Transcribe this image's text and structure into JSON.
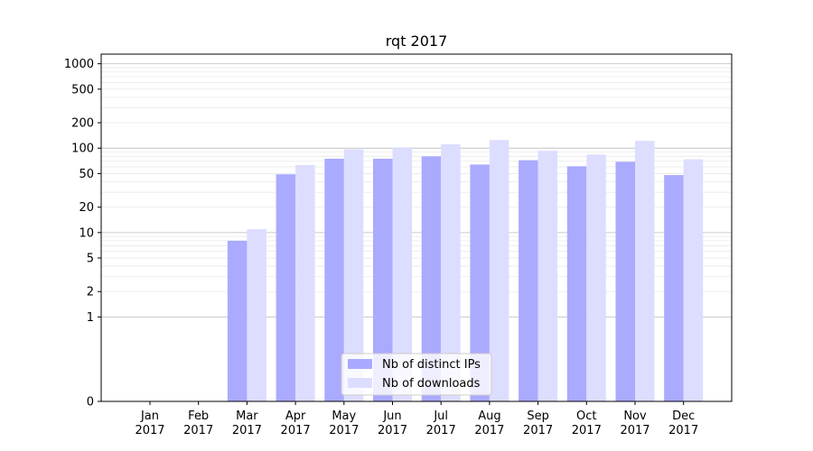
{
  "chart_data": {
    "type": "bar",
    "title": "rqt 2017",
    "xlabel": "",
    "ylabel": "",
    "yscale": "symlog",
    "ylim": [
      0,
      1300
    ],
    "categories": [
      "Jan\n2017",
      "Feb\n2017",
      "Mar\n2017",
      "Apr\n2017",
      "May\n2017",
      "Jun\n2017",
      "Jul\n2017",
      "Aug\n2017",
      "Sep\n2017",
      "Oct\n2017",
      "Nov\n2017",
      "Dec\n2017"
    ],
    "yticks": [
      0,
      1,
      2,
      5,
      10,
      20,
      50,
      100,
      200,
      500,
      1000
    ],
    "ytick_labels": [
      "0",
      "1",
      "2",
      "5",
      "10",
      "20",
      "50",
      "100",
      "200",
      "500",
      "1000"
    ],
    "grid": true,
    "legend_position": "lower-center",
    "series": [
      {
        "name": "Nb of distinct IPs",
        "color": "#aaaaff",
        "values": [
          0,
          0,
          8,
          49,
          75,
          75,
          80,
          64,
          72,
          61,
          69,
          48
        ]
      },
      {
        "name": "Nb of downloads",
        "color": "#ddddff",
        "values": [
          0,
          0,
          11,
          63,
          97,
          102,
          111,
          125,
          93,
          84,
          122,
          74
        ]
      }
    ]
  }
}
